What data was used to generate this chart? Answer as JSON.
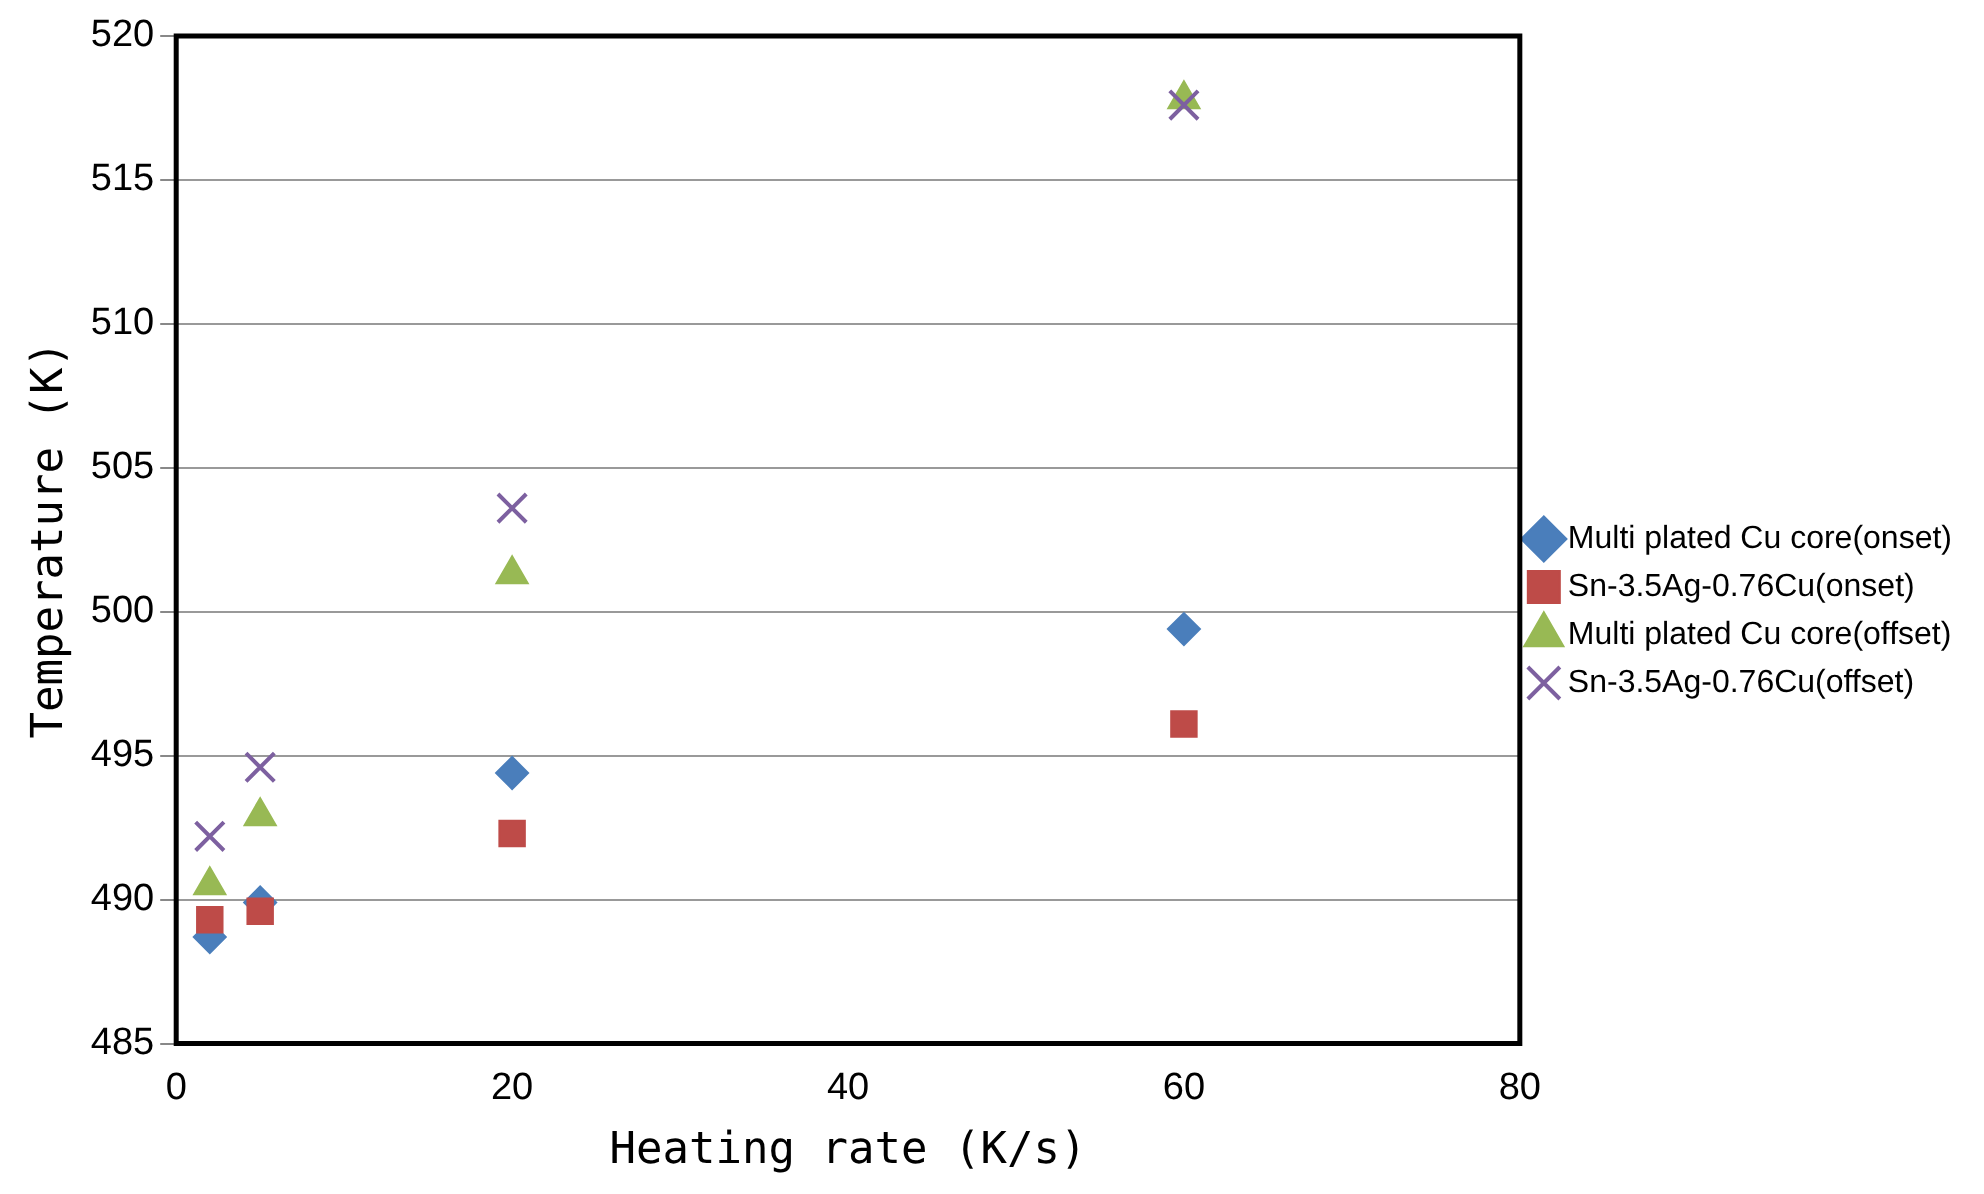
{
  "chart_data": {
    "type": "scatter",
    "xlabel": "Heating rate (K/s)",
    "ylabel": "Temperature (K)",
    "x": [
      2,
      5,
      20,
      60
    ],
    "series": [
      {
        "name": "Multi plated Cu core(onset)",
        "color": "#4a7ebb",
        "marker": "diamond",
        "values": [
          488.7,
          489.9,
          494.4,
          499.4
        ]
      },
      {
        "name": "Sn-3.5Ag-0.76Cu(onset)",
        "color": "#be4b48",
        "marker": "square",
        "values": [
          489.3,
          489.6,
          492.3,
          496.1
        ]
      },
      {
        "name": "Multi plated Cu core(offset)",
        "color": "#98b954",
        "marker": "triangle",
        "values": [
          490.5,
          492.9,
          501.3,
          517.8
        ]
      },
      {
        "name": "Sn-3.5Ag-0.76Cu(offset)",
        "color": "#7d60a0",
        "marker": "cross",
        "values": [
          492.2,
          494.6,
          503.6,
          517.6
        ]
      }
    ],
    "xlim": [
      0,
      80
    ],
    "xticks": [
      0,
      20,
      40,
      60,
      80
    ],
    "ylim": [
      485,
      520
    ],
    "yticks": [
      485,
      490,
      495,
      500,
      505,
      510,
      515,
      520
    ],
    "grid": "y",
    "legend": "right"
  }
}
